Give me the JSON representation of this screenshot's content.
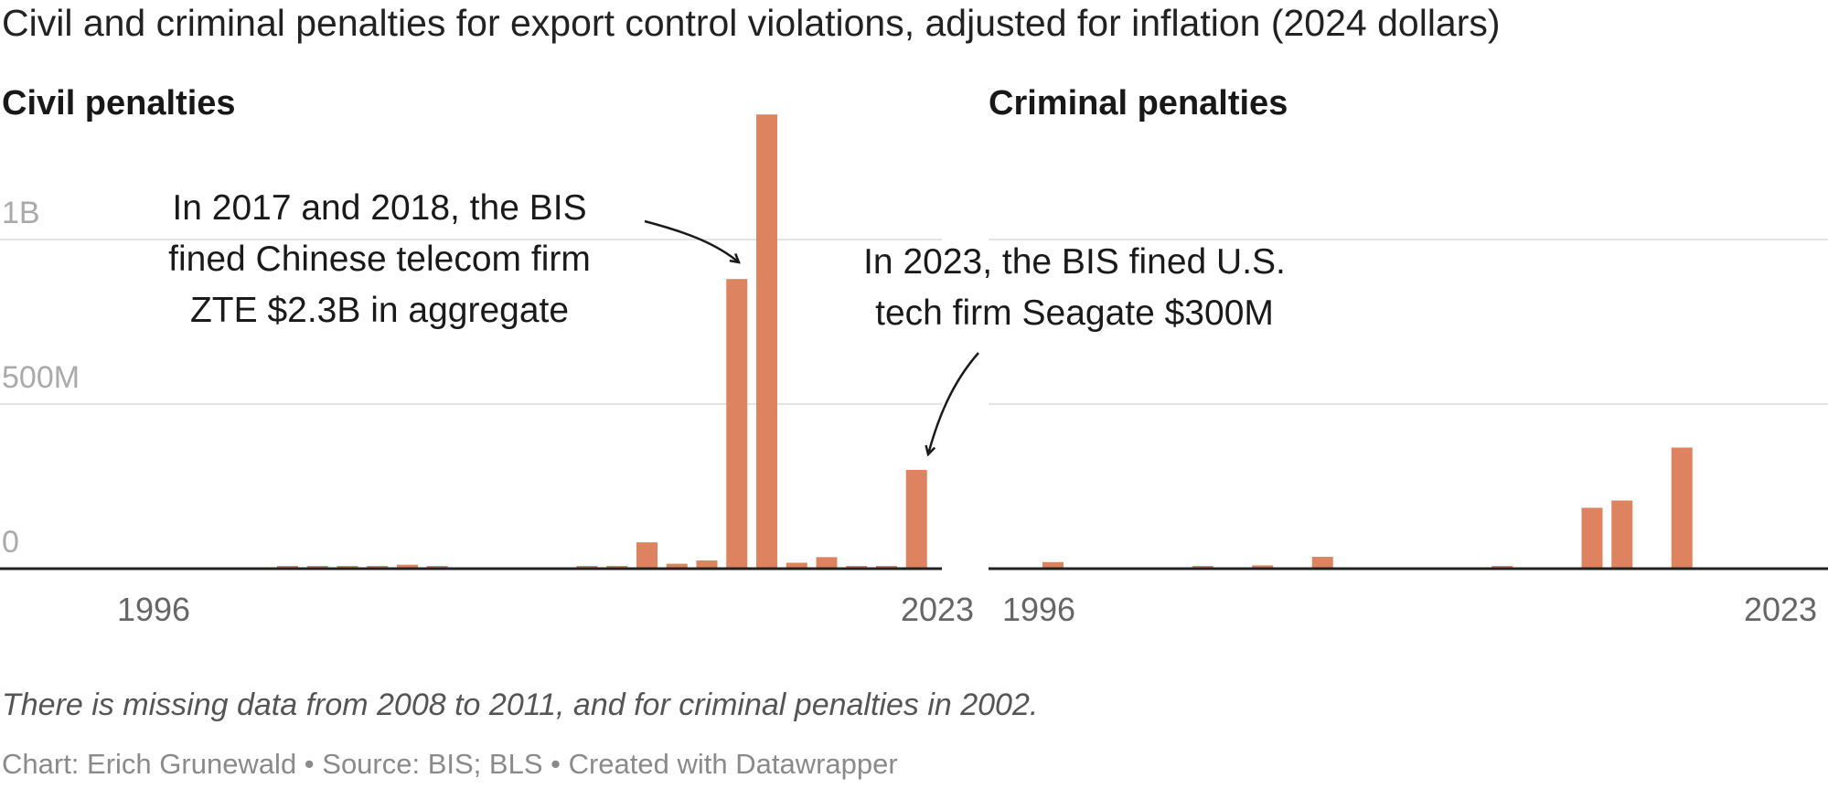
{
  "title": "Civil and criminal penalties for export control violations, adjusted for inflation (2024 dollars)",
  "note": "There is missing data from 2008 to 2011, and for criminal penalties in 2002.",
  "byline": "Chart: Erich Grunewald • Source: BIS; BLS • Created with Datawrapper",
  "colors": {
    "bar": "#de8360",
    "gridline": "#e4e4e4",
    "baseline": "#222222",
    "tick_text": "#aaaaaa",
    "year_text": "#666666"
  },
  "chart_data": [
    {
      "type": "bar",
      "title": "Civil penalties",
      "x": [
        1996,
        1997,
        1998,
        1999,
        2000,
        2001,
        2002,
        2003,
        2004,
        2005,
        2006,
        2007,
        2008,
        2009,
        2010,
        2011,
        2012,
        2013,
        2014,
        2015,
        2016,
        2017,
        2018,
        2019,
        2020,
        2021,
        2022,
        2023
      ],
      "values": [
        null,
        null,
        null,
        null,
        null,
        null,
        5000000,
        4000000,
        6000000,
        7000000,
        12000000,
        4000000,
        null,
        null,
        null,
        null,
        5000000,
        5000000,
        80000000,
        15000000,
        25000000,
        880000000,
        1380000000,
        18000000,
        35000000,
        8000000,
        1000000,
        300000000
      ],
      "y_ticks": [
        {
          "value": 0,
          "label": "0"
        },
        {
          "value": 500000000,
          "label": "500M"
        },
        {
          "value": 1000000000,
          "label": "1B"
        }
      ],
      "x_tick_labels": [
        "1996",
        "2023"
      ],
      "ylim": [
        0,
        1400000000
      ],
      "grid": true,
      "annotations": [
        {
          "lines": [
            "In 2017 and 2018, the BIS",
            "fined Chinese telecom firm",
            "ZTE $2.3B in aggregate"
          ]
        },
        {
          "lines": [
            "In 2023, the BIS fined U.S.",
            "tech firm Seagate $300M"
          ]
        }
      ]
    },
    {
      "type": "bar",
      "title": "Criminal penalties",
      "x": [
        1996,
        1997,
        1998,
        1999,
        2000,
        2001,
        2002,
        2003,
        2004,
        2005,
        2006,
        2007,
        2008,
        2009,
        2010,
        2011,
        2012,
        2013,
        2014,
        2015,
        2016,
        2017,
        2018,
        2019,
        2020,
        2021,
        2022,
        2023
      ],
      "values": [
        null,
        null,
        20000000,
        null,
        null,
        null,
        null,
        2000000,
        null,
        10000000,
        null,
        36000000,
        null,
        null,
        null,
        null,
        null,
        2000000,
        null,
        null,
        185000000,
        207000000,
        null,
        368000000,
        null,
        null,
        null,
        null
      ],
      "y_ticks": [
        {
          "value": 0,
          "label": ""
        },
        {
          "value": 500000000,
          "label": ""
        },
        {
          "value": 1000000000,
          "label": ""
        }
      ],
      "x_tick_labels": [
        "1996",
        "2023"
      ],
      "ylim": [
        0,
        1400000000
      ],
      "grid": true
    }
  ]
}
